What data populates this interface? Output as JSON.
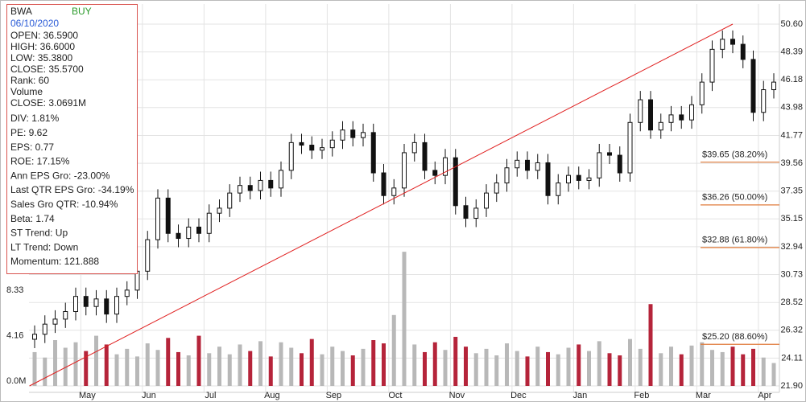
{
  "chart_data": {
    "type": "candlestick",
    "info": {
      "ticker": "BWA",
      "signal": "BUY",
      "date": "06/10/2020",
      "lines": [
        "OPEN: 36.5900",
        "HIGH: 36.6000",
        "LOW: 35.3800",
        "CLOSE: 35.5700",
        "Rank: 60",
        "Volume",
        "CLOSE: 3.0691M",
        "DIV: 1.81%",
        "PE: 9.62",
        "EPS: 0.77",
        "ROE: 17.15%",
        "Ann EPS Gro: -23.00%",
        "Last QTR EPS Gro: -34.19%",
        "Sales Gro QTR: -10.94%",
        "Beta: 1.74",
        "ST Trend: Up",
        "LT Trend: Down",
        "Momentum: 121.888"
      ]
    },
    "categories": [
      null,
      null,
      null,
      null,
      null,
      "May",
      null,
      null,
      null,
      null,
      null,
      "Jun",
      null,
      null,
      null,
      null,
      null,
      "Jul",
      null,
      null,
      null,
      null,
      null,
      "Aug",
      null,
      null,
      null,
      null,
      null,
      "Sep",
      null,
      null,
      null,
      null,
      null,
      "Oct",
      null,
      null,
      null,
      null,
      null,
      "Nov",
      null,
      null,
      null,
      null,
      null,
      "Dec",
      null,
      null,
      null,
      null,
      null,
      "Jan",
      null,
      null,
      null,
      null,
      null,
      "Feb",
      null,
      null,
      null,
      null,
      null,
      "Mar",
      null,
      null,
      null,
      null,
      null,
      "Apr",
      null
    ],
    "open": [
      25.6,
      26.0,
      26.8,
      27.2,
      27.8,
      29.0,
      28.2,
      28.8,
      27.6,
      29.0,
      29.5,
      31.0,
      33.5,
      36.8,
      34.0,
      33.6,
      34.5,
      34.0,
      35.6,
      36.0,
      37.2,
      37.8,
      37.4,
      38.2,
      37.6,
      39.0,
      41.2,
      41.0,
      40.6,
      40.8,
      41.4,
      42.2,
      41.6,
      42.0,
      38.8,
      37.0,
      37.6,
      40.4,
      41.2,
      39.0,
      38.6,
      40.0,
      36.2,
      35.2,
      36.0,
      37.2,
      38.0,
      39.2,
      39.8,
      39.0,
      39.6,
      37.0,
      38.0,
      38.6,
      38.2,
      38.4,
      40.4,
      40.2,
      38.8,
      42.8,
      44.6,
      42.2,
      42.8,
      43.4,
      43.0,
      44.2,
      46.0,
      48.6,
      49.4,
      49.0,
      47.8,
      43.6,
      45.4
    ],
    "high": [
      26.7,
      27.5,
      27.9,
      28.5,
      29.7,
      29.7,
      29.5,
      29.5,
      29.7,
      30.2,
      31.7,
      34.2,
      37.5,
      37.5,
      34.7,
      35.2,
      35.2,
      36.3,
      36.7,
      37.9,
      38.5,
      38.5,
      38.9,
      38.9,
      39.7,
      41.9,
      41.9,
      41.7,
      41.5,
      42.1,
      42.9,
      42.9,
      42.7,
      42.7,
      39.5,
      38.3,
      41.1,
      41.9,
      41.9,
      39.7,
      40.7,
      40.7,
      36.9,
      36.7,
      37.9,
      38.7,
      39.9,
      40.5,
      40.5,
      40.3,
      40.3,
      38.7,
      39.3,
      39.3,
      39.1,
      41.1,
      41.1,
      40.9,
      43.5,
      45.3,
      45.3,
      43.5,
      44.1,
      44.1,
      44.9,
      46.7,
      49.3,
      50.1,
      50.1,
      49.7,
      48.5,
      46.1,
      46.7
    ],
    "low": [
      24.9,
      25.3,
      26.1,
      26.5,
      27.1,
      27.5,
      27.5,
      26.9,
      26.9,
      28.3,
      28.8,
      30.3,
      32.8,
      33.3,
      32.9,
      32.9,
      33.3,
      33.3,
      34.9,
      35.3,
      36.5,
      36.7,
      36.7,
      36.9,
      36.9,
      38.3,
      40.3,
      39.9,
      39.9,
      40.1,
      40.7,
      40.9,
      40.9,
      38.1,
      36.3,
      36.3,
      36.9,
      39.7,
      38.3,
      37.9,
      37.9,
      35.5,
      34.5,
      34.5,
      35.3,
      36.5,
      37.3,
      38.5,
      38.3,
      38.3,
      36.3,
      36.3,
      37.3,
      37.5,
      37.5,
      37.7,
      39.5,
      38.1,
      38.1,
      42.1,
      41.5,
      41.5,
      42.1,
      42.3,
      42.3,
      43.5,
      45.3,
      47.9,
      48.3,
      47.1,
      42.9,
      42.9,
      44.7
    ],
    "close": [
      26.0,
      26.8,
      27.2,
      27.8,
      29.0,
      28.2,
      28.8,
      27.6,
      29.0,
      29.5,
      31.0,
      33.5,
      36.8,
      34.0,
      33.6,
      34.5,
      34.0,
      35.6,
      36.0,
      37.2,
      37.8,
      37.4,
      38.2,
      37.6,
      39.0,
      41.2,
      41.0,
      40.6,
      40.8,
      41.4,
      42.2,
      41.6,
      42.0,
      38.8,
      37.0,
      37.6,
      40.4,
      41.2,
      39.0,
      38.6,
      40.0,
      36.2,
      35.2,
      36.0,
      37.2,
      38.0,
      39.2,
      39.8,
      39.0,
      39.6,
      37.0,
      38.0,
      38.6,
      38.2,
      38.4,
      40.4,
      40.2,
      38.8,
      42.8,
      44.6,
      42.2,
      42.8,
      43.4,
      43.0,
      44.2,
      46.0,
      48.6,
      49.4,
      49.0,
      47.8,
      43.6,
      45.4,
      46.0
    ],
    "volume": [
      3.1,
      2.6,
      4.2,
      3.5,
      4.0,
      3.2,
      4.6,
      3.8,
      2.9,
      3.4,
      2.7,
      3.9,
      3.3,
      4.4,
      3.1,
      2.8,
      4.6,
      3.0,
      3.6,
      2.9,
      3.8,
      3.2,
      4.1,
      2.7,
      4.0,
      3.5,
      3.0,
      4.3,
      2.9,
      3.6,
      3.2,
      2.8,
      3.4,
      4.2,
      3.9,
      6.5,
      12.3,
      3.8,
      3.1,
      4.0,
      3.3,
      4.5,
      3.6,
      3.0,
      3.4,
      2.8,
      3.9,
      3.2,
      2.7,
      3.6,
      3.1,
      2.9,
      3.5,
      3.8,
      3.2,
      4.1,
      3.0,
      2.8,
      4.3,
      3.4,
      7.5,
      3.0,
      3.6,
      2.9,
      3.7,
      4.0,
      3.3,
      3.1,
      3.6,
      2.9,
      3.4,
      2.6,
      2.1
    ],
    "up_color": "#b8b8b8",
    "down_color": "#b5243a",
    "candle_color": "#111111",
    "ylim": [
      21.9,
      50.6
    ],
    "yticks": [
      {
        "value": 21.9,
        "label": "21.90"
      },
      24.11,
      26.32,
      28.52,
      30.73,
      32.94,
      35.15,
      37.35,
      39.56,
      41.77,
      43.98,
      46.18,
      48.39,
      {
        "value": 50.6,
        "label": "50.60"
      }
    ],
    "vlim": [
      0,
      33.17
    ],
    "vticks": [
      {
        "value": 0,
        "label": "0.0M"
      },
      4.16,
      8.33
    ],
    "trendline": {
      "start": [
        0,
        21.9
      ],
      "end": [
        68,
        50.6
      ],
      "color": "#e02020"
    },
    "fib_levels": [
      {
        "value": 39.65,
        "label": "$39.65 (38.20%)"
      },
      {
        "value": 36.26,
        "label": "$36.26 (50.00%)"
      },
      {
        "value": 32.88,
        "label": "$32.88 (61.80%)"
      },
      {
        "value": 25.2,
        "label": "$25.20 (88.60%)"
      }
    ],
    "fib_color": "#e07a3a",
    "grid": true
  }
}
